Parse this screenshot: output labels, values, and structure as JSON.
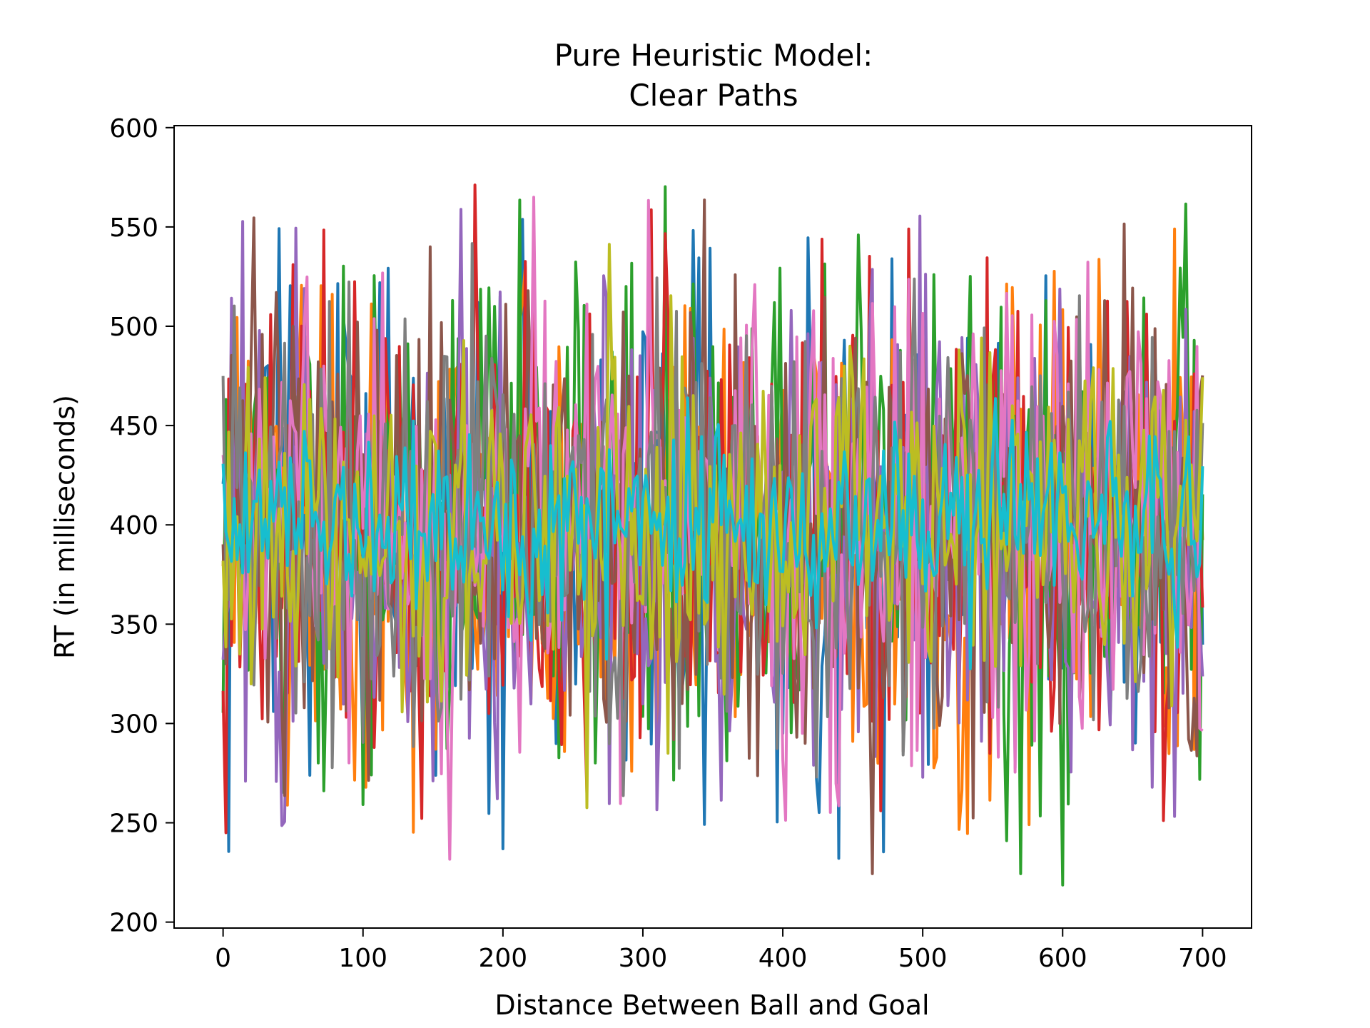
{
  "chart_data": {
    "type": "line",
    "title_lines": [
      "Pure Heuristic Model:",
      "Clear Paths"
    ],
    "xlabel": "Distance Between Ball and Goal",
    "ylabel": "RT (in milliseconds)",
    "xlim": [
      -35,
      735
    ],
    "ylim": [
      197,
      601
    ],
    "x_ticks": [
      0,
      100,
      200,
      300,
      400,
      500,
      600,
      700
    ],
    "y_ticks": [
      200,
      250,
      300,
      350,
      400,
      450,
      500,
      550,
      600
    ],
    "x_range": [
      0,
      700
    ],
    "grid": false,
    "legend": "none",
    "series_count": 10,
    "points_per_series": 351,
    "series_colors": [
      "#1f77b4",
      "#ff7f0e",
      "#2ca02c",
      "#d62728",
      "#9467bd",
      "#8c564b",
      "#e377c2",
      "#7f7f7f",
      "#bcbd22",
      "#17becf"
    ],
    "series_spread": [
      {
        "mean": 400,
        "sd": 65,
        "min": 227,
        "max": 563
      },
      {
        "mean": 400,
        "sd": 65,
        "min": 235,
        "max": 578
      },
      {
        "mean": 400,
        "sd": 63,
        "min": 217,
        "max": 574
      },
      {
        "mean": 400,
        "sd": 64,
        "min": 240,
        "max": 582
      },
      {
        "mean": 400,
        "sd": 62,
        "min": 245,
        "max": 560
      },
      {
        "mean": 400,
        "sd": 60,
        "min": 223,
        "max": 564
      },
      {
        "mean": 400,
        "sd": 58,
        "min": 220,
        "max": 567
      },
      {
        "mean": 400,
        "sd": 55,
        "min": 233,
        "max": 579
      },
      {
        "mean": 400,
        "sd": 45,
        "min": 215,
        "max": 583
      },
      {
        "mean": 400,
        "sd": 24,
        "min": 230,
        "max": 574
      }
    ]
  }
}
